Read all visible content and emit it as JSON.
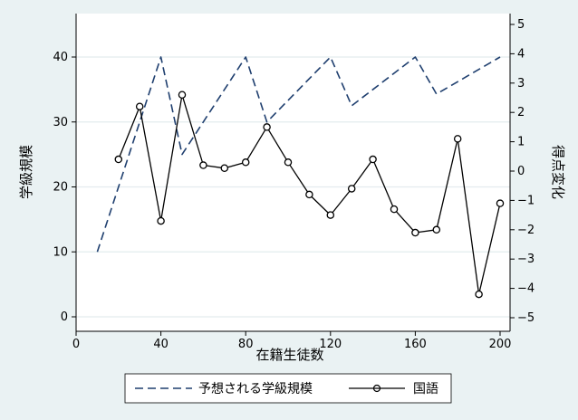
{
  "chart_data": {
    "type": "line",
    "xlabel": "在籍生徒数",
    "ylabel_left": "学級規模",
    "ylabel_right": "得点変化",
    "xlim": [
      0,
      200
    ],
    "ylim_left": [
      0,
      45
    ],
    "ylim_right": [
      -5,
      5
    ],
    "x_ticks": [
      0,
      40,
      80,
      120,
      160,
      200
    ],
    "y_left_ticks": [
      0,
      10,
      20,
      30,
      40
    ],
    "y_right_ticks": [
      -5,
      -4,
      -3,
      -2,
      -1,
      0,
      1,
      2,
      3,
      4,
      5
    ],
    "grid": true,
    "legend_position": "bottom",
    "series": [
      {
        "name": "予想される学級規模",
        "axis": "left",
        "style": "dashed",
        "color": "#1f3f6f",
        "x": [
          10,
          40,
          50,
          80,
          90,
          120,
          130,
          160,
          170,
          200
        ],
        "y": [
          10,
          40,
          25,
          40,
          30,
          40,
          32.5,
          40,
          34.3,
          40
        ]
      },
      {
        "name": "国語",
        "axis": "right",
        "style": "solid-circle",
        "color": "#000000",
        "x": [
          20,
          30,
          40,
          50,
          60,
          70,
          80,
          90,
          100,
          110,
          120,
          130,
          140,
          150,
          160,
          170,
          180,
          190,
          200
        ],
        "y": [
          0.4,
          2.2,
          -1.7,
          2.6,
          0.2,
          0.1,
          0.3,
          1.5,
          0.3,
          -0.8,
          -1.5,
          -0.6,
          0.4,
          -1.3,
          -2.1,
          -2.0,
          1.1,
          -4.2,
          -1.1
        ]
      }
    ]
  }
}
